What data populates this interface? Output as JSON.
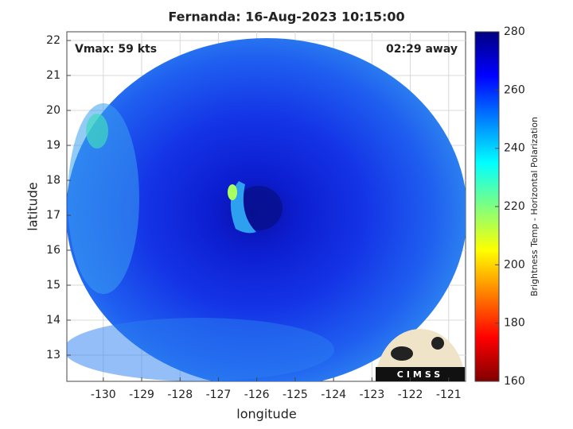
{
  "chart_data": {
    "type": "image",
    "title": "Fernanda: 16-Aug-2023 10:15:00",
    "annotations": [
      "Vmax: 59 kts",
      "02:29 away"
    ],
    "x_label": "longitude",
    "y_label": "latitude",
    "xlim": [
      -130.95,
      -120.56
    ],
    "xticks": [
      -130,
      -129,
      -128,
      -127,
      -126,
      -125,
      -124,
      -123,
      -122,
      -121
    ],
    "ylim": [
      12.25,
      22.25
    ],
    "yticks": [
      13,
      14,
      15,
      16,
      17,
      18,
      19,
      20,
      21,
      22
    ],
    "grid": true,
    "colorbar": {
      "label": "Brightness Temp - Horizontal Polarization",
      "colormap": "jet",
      "clim": [
        160,
        280
      ],
      "ticks": [
        160,
        180,
        200,
        220,
        240,
        260,
        280
      ]
    },
    "logo": "CIMSS"
  }
}
